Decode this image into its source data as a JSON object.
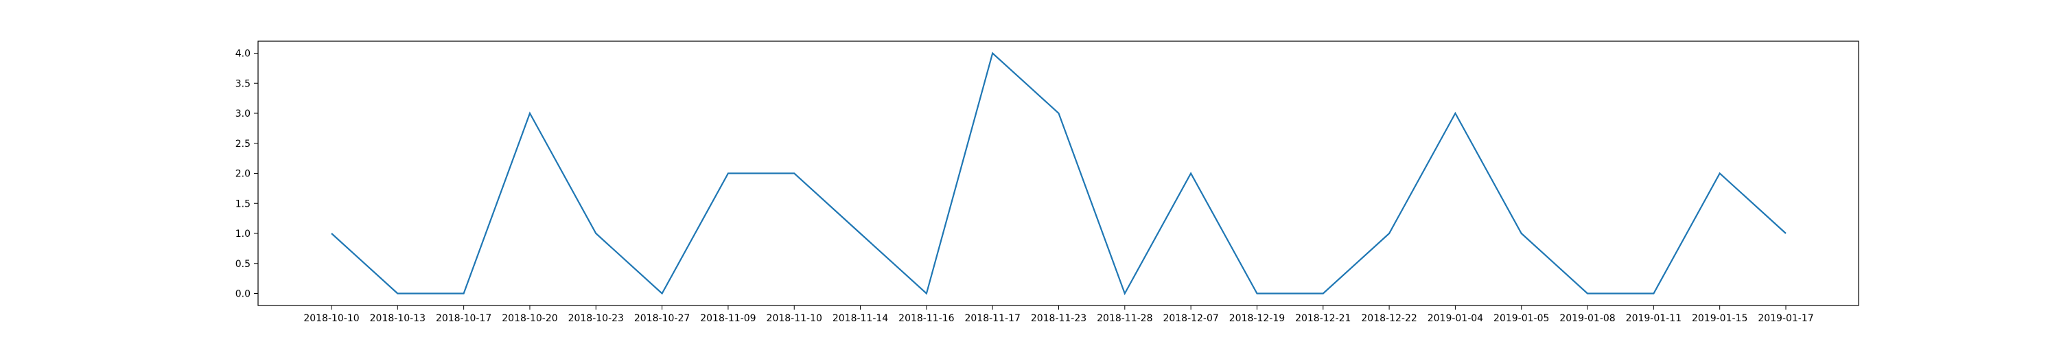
{
  "chart_data": {
    "type": "line",
    "title": "",
    "xlabel": "",
    "ylabel": "",
    "categories": [
      "2018-10-10",
      "2018-10-13",
      "2018-10-17",
      "2018-10-20",
      "2018-10-23",
      "2018-10-27",
      "2018-11-09",
      "2018-11-10",
      "2018-11-14",
      "2018-11-16",
      "2018-11-17",
      "2018-11-23",
      "2018-11-28",
      "2018-12-07",
      "2018-12-19",
      "2018-12-21",
      "2018-12-22",
      "2019-01-04",
      "2019-01-05",
      "2019-01-08",
      "2019-01-11",
      "2019-01-15",
      "2019-01-17"
    ],
    "series": [
      {
        "values": [
          1,
          0,
          0,
          3,
          1,
          0,
          2,
          2,
          1,
          0,
          4,
          3,
          0,
          2,
          0,
          0,
          1,
          3,
          1,
          0,
          0,
          2,
          1
        ],
        "color": "#1f77b4"
      }
    ],
    "ylim": [
      -0.2,
      4.2
    ],
    "yticks": [
      "0.0",
      "0.5",
      "1.0",
      "1.5",
      "2.0",
      "2.5",
      "3.0",
      "3.5",
      "4.0"
    ],
    "grid": false,
    "legend": "none"
  }
}
